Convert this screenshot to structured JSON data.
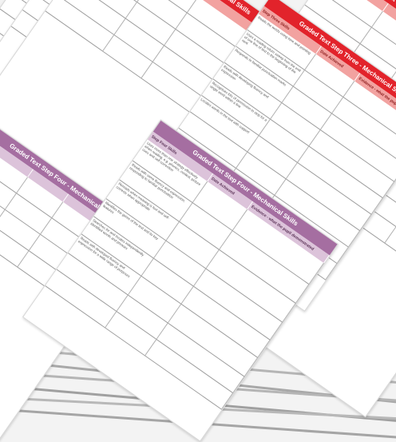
{
  "red_sheet": {
    "title": "Graded Text Step Three - Mechanical Skills",
    "col_skills": "Step Three Skills",
    "col_date": "Date Achieved",
    "col_evidence": "Evidence - what the pupil demonstrated",
    "col_achieved_fragment": "ieved",
    "skills": [
      "Reads the words using tone and pointing",
      "Uses a reading return sweep from the end of one line of text to the beginning of the next",
      "Responds to familiar punctuation marks",
      "Reads with developing fluency and expression",
      "Recognises lots of permission to stop for a single word within a line",
      "Locates words in the text with support"
    ]
  },
  "purple_sheet": {
    "title": "Graded Text Step Four - Mechanical Skills",
    "col_skills": "Step Four Skills",
    "col_date": "Date Achieved",
    "col_evidence": "Evidence - what the pupil demonstrated",
    "col_achieved_fragment": "ieved",
    "skills": [
      "Uses more than one strategy effectively when reading, e.g. phonics, context, picture cues and self-correction",
      "Reads with some fluency and expression, responding to familiar punctuation",
      "Rereads when meaning is lost and self-corrects when appropriate",
      "Identifies the genre of the text and its key features",
      "Searches for and locates independently identified words and phrases",
      "Reads with developed fluency and expression for a wide range of purposes"
    ]
  },
  "colors": {
    "red": "#e2232b",
    "red_light": "#f2a2a0",
    "purple": "#a56ea1",
    "purple_light": "#dcc3da"
  }
}
